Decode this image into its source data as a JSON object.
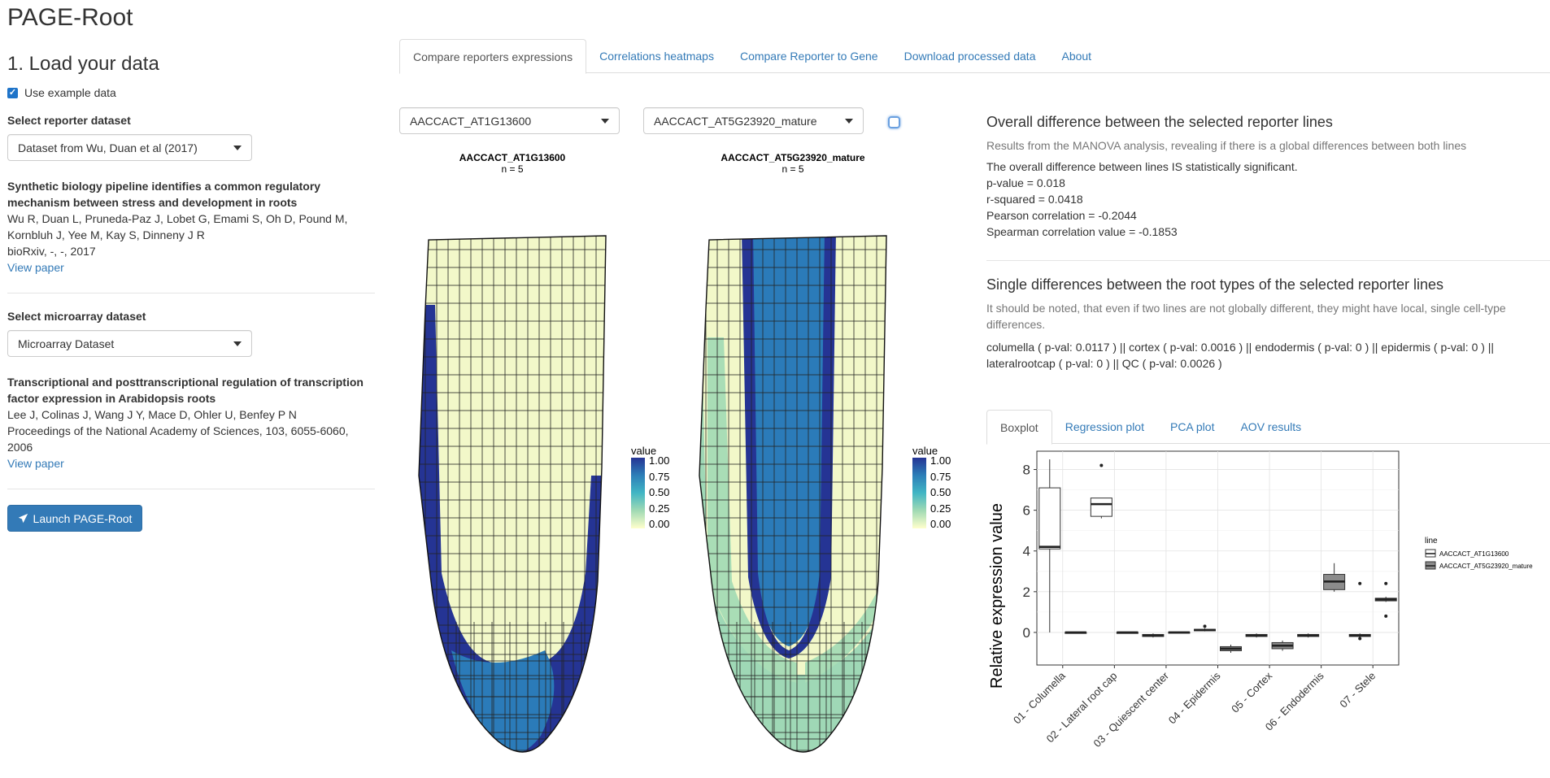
{
  "app": {
    "title": "PAGE-Root"
  },
  "sidebar": {
    "heading": "1. Load your data",
    "use_example_label": "Use example data",
    "reporter_label": "Select reporter dataset",
    "reporter_selected": "Dataset from Wu, Duan et al (2017)",
    "reporter_paper": {
      "title": "Synthetic biology pipeline identifies a common regulatory mechanism between stress and development in roots",
      "authors": "Wu R, Duan L, Pruneda-Paz J, Lobet G, Emami S, Oh D, Pound M, Kornbluh J, Yee M, Kay S, Dinneny J R",
      "journal": "bioRxiv, -, -, 2017",
      "link": "View paper"
    },
    "microarray_label": "Select microarray dataset",
    "microarray_selected": "Microarray Dataset",
    "microarray_paper": {
      "title": "Transcriptional and posttranscriptional regulation of transcription factor expression in Arabidopsis roots",
      "authors": "Lee J, Colinas J, Wang J Y, Mace D, Ohler U, Benfey P N",
      "journal": "Proceedings of the National Academy of Sciences, 103, 6055-6060, 2006",
      "link": "View paper"
    },
    "launch_label": "Launch PAGE-Root"
  },
  "tabs": [
    {
      "label": "Compare reporters expressions",
      "active": true
    },
    {
      "label": "Correlations heatmaps",
      "active": false
    },
    {
      "label": "Compare Reporter to Gene",
      "active": false
    },
    {
      "label": "Download processed data",
      "active": false
    },
    {
      "label": "About",
      "active": false
    }
  ],
  "selects": {
    "left": "AACCACT_AT1G13600",
    "right": "AACCACT_AT5G23920_mature"
  },
  "plots": {
    "left": {
      "title": "AACCACT_AT1G13600",
      "n": "n = 5"
    },
    "right": {
      "title": "AACCACT_AT5G23920_mature",
      "n": "n = 5"
    },
    "legend": {
      "title": "value",
      "ticks": [
        "1.00",
        "0.75",
        "0.50",
        "0.25",
        "0.00"
      ]
    }
  },
  "colors": {
    "scale_high": "#253494",
    "scale_mid_high": "#2c7fb8",
    "scale_mid": "#41b6c4",
    "scale_mid_low": "#a1dab4",
    "scale_low": "#ffffcc",
    "link": "#337ab7",
    "button": "#337ab7"
  },
  "overall": {
    "heading": "Overall difference between the selected reporter lines",
    "description": "Results from the MANOVA analysis, revealing if there is a global differences between both lines",
    "lines": [
      "The overall difference between lines IS statistically significant.",
      "p-value = 0.018",
      "r-squared = 0.0418",
      "Pearson correlation = -0.2044",
      "Spearman correlation value = -0.1853"
    ]
  },
  "single": {
    "heading": "Single differences between the root types of the selected reporter lines",
    "description": "It should be noted, that even if two lines are not globally different, they might have local, single cell-type differences.",
    "result": "columella ( p-val: 0.0117 ) || cortex ( p-val: 0.0016 ) || endodermis ( p-val: 0 ) || epidermis ( p-val: 0 ) || lateralrootcap ( p-val: 0 ) || QC ( p-val: 0.0026 )"
  },
  "subtabs": [
    {
      "label": "Boxplot",
      "active": true
    },
    {
      "label": "Regression plot",
      "active": false
    },
    {
      "label": "PCA plot",
      "active": false
    },
    {
      "label": "AOV results",
      "active": false
    }
  ],
  "chart_data": {
    "type": "boxplot",
    "ylabel": "Relative expression value",
    "yticks": [
      0,
      2,
      4,
      6,
      8
    ],
    "ylim": [
      -1.6,
      8.9
    ],
    "legend_title": "line",
    "legend_position": "right",
    "grid": true,
    "categories": [
      "01 - Columella",
      "02 - Lateral root cap",
      "03 - Quiescent center",
      "04 - Epidermis",
      "05 - Cortex",
      "06 - Endodermis",
      "07 - Stele"
    ],
    "series": [
      {
        "name": "AACCACT_AT1G13600",
        "fill": "#ffffff",
        "boxes": [
          {
            "min": 0.0,
            "q1": 4.1,
            "median": 4.2,
            "q3": 7.1,
            "max": 8.5,
            "outliers": []
          },
          {
            "min": 5.6,
            "q1": 5.7,
            "median": 6.3,
            "q3": 6.6,
            "max": 6.6,
            "outliers": [
              8.2
            ]
          },
          {
            "min": -0.25,
            "q1": -0.2,
            "median": -0.15,
            "q3": -0.1,
            "max": -0.05,
            "outliers": []
          },
          {
            "min": 0.05,
            "q1": 0.08,
            "median": 0.12,
            "q3": 0.15,
            "max": 0.2,
            "outliers": [
              0.3
            ]
          },
          {
            "min": -0.25,
            "q1": -0.2,
            "median": -0.15,
            "q3": -0.1,
            "max": -0.05,
            "outliers": []
          },
          {
            "min": -0.25,
            "q1": -0.2,
            "median": -0.15,
            "q3": -0.1,
            "max": -0.05,
            "outliers": []
          },
          {
            "min": -0.25,
            "q1": -0.2,
            "median": -0.15,
            "q3": -0.1,
            "max": -0.05,
            "outliers": [
              -0.3,
              2.4
            ]
          }
        ]
      },
      {
        "name": "AACCACT_AT5G23920_mature",
        "fill": "#8c8c8c",
        "boxes": [
          {
            "min": -0.02,
            "q1": -0.01,
            "median": 0.0,
            "q3": 0.01,
            "max": 0.02,
            "outliers": []
          },
          {
            "min": -0.02,
            "q1": -0.01,
            "median": 0.0,
            "q3": 0.01,
            "max": 0.02,
            "outliers": []
          },
          {
            "min": -0.03,
            "q1": -0.01,
            "median": 0.0,
            "q3": 0.02,
            "max": 0.04,
            "outliers": []
          },
          {
            "min": -1.0,
            "q1": -0.9,
            "median": -0.8,
            "q3": -0.7,
            "max": -0.6,
            "outliers": []
          },
          {
            "min": -0.9,
            "q1": -0.8,
            "median": -0.65,
            "q3": -0.5,
            "max": -0.4,
            "outliers": []
          },
          {
            "min": 2.0,
            "q1": 2.1,
            "median": 2.5,
            "q3": 2.85,
            "max": 3.4,
            "outliers": []
          },
          {
            "min": 1.5,
            "q1": 1.55,
            "median": 1.62,
            "q3": 1.68,
            "max": 1.75,
            "outliers": [
              0.8,
              2.4
            ]
          }
        ]
      }
    ]
  }
}
